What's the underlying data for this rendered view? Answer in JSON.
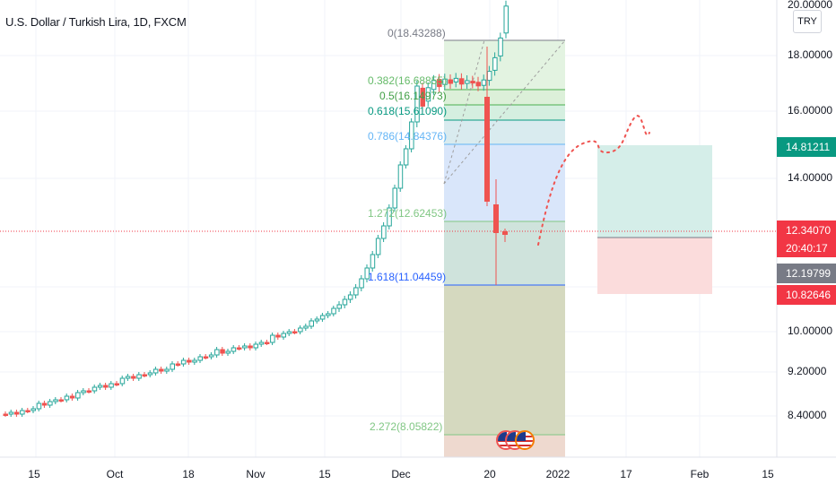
{
  "header": {
    "title": "U.S. Dollar / Turkish Lira, 1D, FXCM",
    "currency_button": "TRY"
  },
  "price_axis": {
    "ticks": [
      "20.00000",
      "18.00000",
      "16.00000",
      "14.00000",
      "10.00000",
      "9.20000",
      "8.40000"
    ],
    "labels": {
      "target": "14.81211",
      "last": "12.34070",
      "countdown": "20:40:17",
      "crosshair": "12.19799",
      "stop": "10.82646"
    }
  },
  "time_axis": {
    "ticks": [
      "15",
      "Oct",
      "18",
      "Nov",
      "15",
      "Dec",
      "20",
      "2022",
      "17",
      "Feb",
      "15"
    ]
  },
  "fibonacci": {
    "levels": [
      {
        "label": "0(18.43288)",
        "ratio": 0,
        "price": 18.43288
      },
      {
        "label": "0.382(16.68855)",
        "ratio": 0.382,
        "price": 16.68855
      },
      {
        "label": "0.5(16.14973)",
        "ratio": 0.5,
        "price": 16.14973
      },
      {
        "label": "0.618(15.61090)",
        "ratio": 0.618,
        "price": 15.6109
      },
      {
        "label": "0.786(14.84376)",
        "ratio": 0.786,
        "price": 14.84376
      },
      {
        "label": "1.272(12.62453)",
        "ratio": 1.272,
        "price": 12.62453
      },
      {
        "label": "1.618(11.04459)",
        "ratio": 1.618,
        "price": 11.04459
      },
      {
        "label": "2.272(8.05822)",
        "ratio": 2.272,
        "price": 8.05822
      }
    ]
  },
  "position_tool": {
    "entry": 12.3407,
    "target": 14.81211,
    "stop": 10.82646
  },
  "colors": {
    "up": "#26a69a",
    "down": "#ef5350",
    "last_price": "#f23645",
    "target_label": "#089981",
    "crosshair_label": "#787b86"
  },
  "icons": [
    "us-flag-event-icon",
    "us-flag-event-icon",
    "us-flag-event-icon"
  ]
}
